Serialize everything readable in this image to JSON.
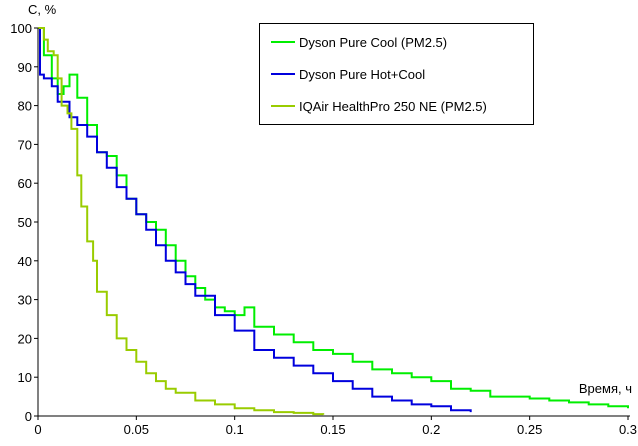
{
  "chart_data": {
    "type": "line",
    "title": "",
    "xlabel": "Время, ч",
    "ylabel": "С, %",
    "xlim": [
      0,
      0.3
    ],
    "ylim": [
      0,
      100
    ],
    "grid": false,
    "legend_position": "top-right",
    "x_ticks": [
      0,
      0.05,
      0.1,
      0.15,
      0.2,
      0.25,
      0.3
    ],
    "x_tick_labels": [
      "0",
      "0.05",
      "0.1",
      "0.15",
      "0.2",
      "0.25",
      "0.3"
    ],
    "y_ticks": [
      0,
      10,
      20,
      30,
      40,
      50,
      60,
      70,
      80,
      90,
      100
    ],
    "y_tick_labels": [
      "0",
      "10",
      "20",
      "30",
      "40",
      "50",
      "60",
      "70",
      "80",
      "90",
      "100"
    ],
    "series": [
      {
        "name": "Dyson Pure Cool (PM2.5)",
        "color": "#00ee00",
        "x": [
          0,
          0.003,
          0.005,
          0.007,
          0.01,
          0.013,
          0.016,
          0.02,
          0.025,
          0.03,
          0.035,
          0.04,
          0.045,
          0.05,
          0.055,
          0.06,
          0.065,
          0.07,
          0.075,
          0.08,
          0.085,
          0.09,
          0.095,
          0.1,
          0.105,
          0.11,
          0.12,
          0.13,
          0.14,
          0.15,
          0.16,
          0.17,
          0.18,
          0.19,
          0.2,
          0.21,
          0.22,
          0.23,
          0.24,
          0.25,
          0.26,
          0.27,
          0.28,
          0.29,
          0.3
        ],
        "y": [
          100,
          93,
          93,
          87,
          83,
          85,
          88,
          82,
          75,
          68,
          67,
          62,
          56,
          52,
          50,
          48,
          44,
          40,
          36,
          33,
          30,
          28,
          27,
          26,
          28,
          23,
          21,
          19,
          17,
          16,
          14,
          12,
          11,
          10,
          9,
          7,
          6.5,
          5,
          5,
          4.5,
          4,
          3.5,
          3,
          2.5,
          2
        ]
      },
      {
        "name": "Dyson Pure Hot+Cool",
        "color": "#0000dd",
        "x": [
          0,
          0.001,
          0.003,
          0.005,
          0.007,
          0.01,
          0.013,
          0.016,
          0.02,
          0.025,
          0.03,
          0.035,
          0.04,
          0.045,
          0.05,
          0.055,
          0.06,
          0.065,
          0.07,
          0.075,
          0.08,
          0.09,
          0.1,
          0.11,
          0.12,
          0.13,
          0.14,
          0.15,
          0.16,
          0.17,
          0.18,
          0.19,
          0.2,
          0.21,
          0.22
        ],
        "y": [
          100,
          88,
          87,
          87,
          85,
          81,
          81,
          77,
          75,
          72,
          68,
          64,
          59,
          56,
          52,
          48,
          44,
          40,
          37,
          34,
          31,
          26,
          22,
          17,
          15,
          13,
          11,
          9,
          7,
          5,
          4,
          3,
          2.5,
          1.5,
          1
        ]
      },
      {
        "name": "IQAir HealthPro 250 NE (PM2.5)",
        "color": "#99cc00",
        "x": [
          0,
          0.003,
          0.005,
          0.008,
          0.01,
          0.012,
          0.015,
          0.017,
          0.02,
          0.022,
          0.025,
          0.028,
          0.03,
          0.035,
          0.04,
          0.045,
          0.05,
          0.055,
          0.06,
          0.065,
          0.07,
          0.08,
          0.09,
          0.1,
          0.11,
          0.12,
          0.13,
          0.14,
          0.145
        ],
        "y": [
          100,
          97,
          94,
          93,
          87,
          80,
          78,
          74,
          62,
          54,
          45,
          40,
          32,
          26,
          20,
          17,
          14,
          11,
          9,
          7,
          6,
          4,
          3,
          2,
          1.5,
          1,
          0.8,
          0.5,
          0.3
        ]
      }
    ]
  }
}
